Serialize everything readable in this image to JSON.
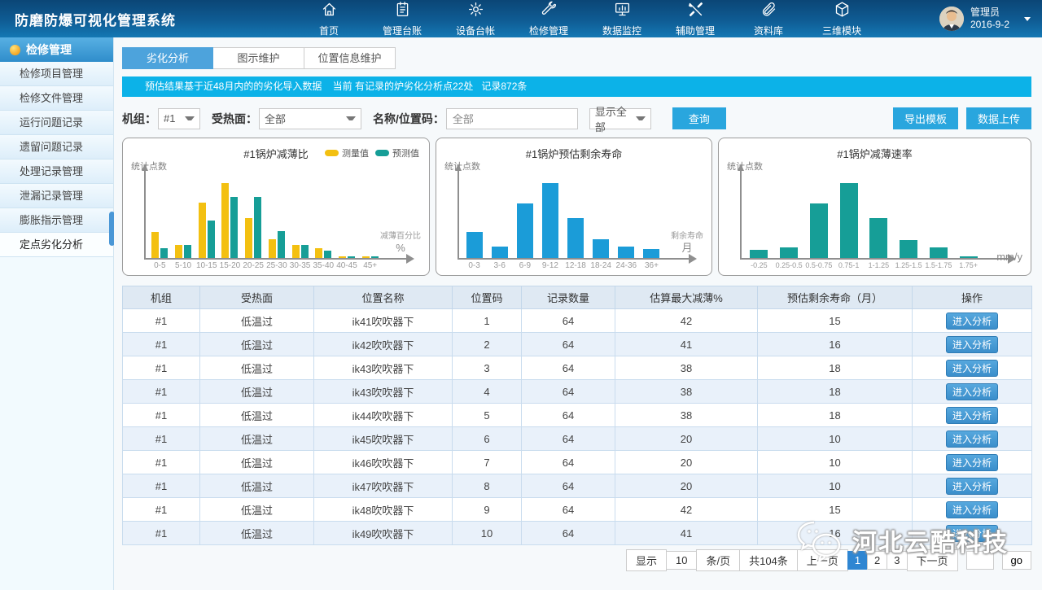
{
  "app": {
    "title": "防磨防爆可视化管理系统"
  },
  "topnav": {
    "items": [
      {
        "label": "首页",
        "icon": "home-icon"
      },
      {
        "label": "管理台账",
        "icon": "ledger-icon"
      },
      {
        "label": "设备台帐",
        "icon": "gear-icon"
      },
      {
        "label": "检修管理",
        "icon": "wrench-icon"
      },
      {
        "label": "数据监控",
        "icon": "monitor-icon"
      },
      {
        "label": "辅助管理",
        "icon": "tools-icon"
      },
      {
        "label": "资料库",
        "icon": "paperclip-icon"
      },
      {
        "label": "三维模块",
        "icon": "cube-icon"
      }
    ],
    "user": {
      "name": "管理员",
      "date": "2016-9-2"
    }
  },
  "sidebar": {
    "header": "检修管理",
    "items": [
      "检修项目管理",
      "检修文件管理",
      "运行问题记录",
      "遗留问题记录",
      "处理记录管理",
      "泄漏记录管理",
      "膨胀指示管理",
      "定点劣化分析"
    ],
    "active_index": 7
  },
  "tabs": [
    {
      "label": "劣化分析",
      "active": true
    },
    {
      "label": "图示维护",
      "active": false
    },
    {
      "label": "位置信息维护",
      "active": false
    }
  ],
  "banner": "预估结果基于近48月内的的劣化导入数据    当前 有记录的炉劣化分析点22处   记录872条",
  "filters": {
    "unit_label": "机组：",
    "unit_value": "#1",
    "surface_label": "受热面：",
    "surface_value": "全部",
    "name_label": "名称/位置码：",
    "name_value": "全部",
    "display_value": "显示全部",
    "query_button": "查询",
    "export_button": "导出模板",
    "upload_button": "数据上传"
  },
  "chart_data": [
    {
      "type": "bar",
      "title": "#1锅炉减薄比",
      "ylabel": "统计点数",
      "xlabel_lines": [
        "减薄百分比",
        "%"
      ],
      "categories": [
        "0-5",
        "5-10",
        "10-15",
        "15-20",
        "20-25",
        "25-30",
        "30-35",
        "35-40",
        "40-45",
        "45+"
      ],
      "series": [
        {
          "name": "测量值",
          "color": "#f3c011",
          "values": [
            32,
            16,
            68,
            92,
            49,
            23,
            16,
            12,
            1,
            1
          ]
        },
        {
          "name": "预测值",
          "color": "#169e97",
          "values": [
            12,
            16,
            46,
            75,
            75,
            33,
            16,
            9,
            1,
            1
          ]
        }
      ],
      "legend": true,
      "ylim": [
        0,
        100
      ],
      "grid": false
    },
    {
      "type": "bar",
      "title": "#1锅炉预估剩余寿命",
      "ylabel": "统计点数",
      "xlabel_lines": [
        "剩余寿命",
        "月"
      ],
      "categories": [
        "0-3",
        "3-6",
        "6-9",
        "9-12",
        "12-18",
        "18-24",
        "24-36",
        "36+"
      ],
      "series": [
        {
          "name": "统计点数",
          "color": "#1b9cd8",
          "values": [
            32,
            14,
            67,
            92,
            49,
            23,
            14,
            11
          ]
        }
      ],
      "legend": false,
      "ylim": [
        0,
        100
      ],
      "grid": false
    },
    {
      "type": "bar",
      "title": "#1锅炉减薄速率",
      "ylabel": "统计点数",
      "xlabel_lines": [
        "mm/y"
      ],
      "categories": [
        "-0.25",
        "0.25-0.5",
        "0.5-0.75",
        "0.75-1",
        "1-1.25",
        "1.25-1.5",
        "1.5-1.75",
        "1.75+"
      ],
      "series": [
        {
          "name": "统计点数",
          "color": "#169e97",
          "values": [
            10,
            13,
            66,
            90,
            48,
            22,
            13,
            2
          ]
        }
      ],
      "legend": false,
      "ylim": [
        0,
        100
      ],
      "grid": false
    }
  ],
  "table": {
    "headers": [
      "机组",
      "受热面",
      "位置名称",
      "位置码",
      "记录数量",
      "估算最大减薄%",
      "预估剩余寿命（月）",
      "操作"
    ],
    "action_label": "进入分析",
    "rows": [
      {
        "unit": "#1",
        "surface": "低温过",
        "name": "ik41吹吹器下",
        "code": "1",
        "count": "64",
        "thinning": "42",
        "hl": true,
        "life": "15"
      },
      {
        "unit": "#1",
        "surface": "低温过",
        "name": "ik42吹吹器下",
        "code": "2",
        "count": "64",
        "thinning": "41",
        "hl": true,
        "life": "16"
      },
      {
        "unit": "#1",
        "surface": "低温过",
        "name": "ik43吹吹器下",
        "code": "3",
        "count": "64",
        "thinning": "38",
        "hl": true,
        "life": "18"
      },
      {
        "unit": "#1",
        "surface": "低温过",
        "name": "ik43吹吹器下",
        "code": "4",
        "count": "64",
        "thinning": "38",
        "hl": true,
        "life": "18"
      },
      {
        "unit": "#1",
        "surface": "低温过",
        "name": "ik44吹吹器下",
        "code": "5",
        "count": "64",
        "thinning": "38",
        "hl": true,
        "life": "18"
      },
      {
        "unit": "#1",
        "surface": "低温过",
        "name": "ik45吹吹器下",
        "code": "6",
        "count": "64",
        "thinning": "20",
        "hl": false,
        "life": "10"
      },
      {
        "unit": "#1",
        "surface": "低温过",
        "name": "ik46吹吹器下",
        "code": "7",
        "count": "64",
        "thinning": "20",
        "hl": false,
        "life": "10"
      },
      {
        "unit": "#1",
        "surface": "低温过",
        "name": "ik47吹吹器下",
        "code": "8",
        "count": "64",
        "thinning": "20",
        "hl": false,
        "life": "10"
      },
      {
        "unit": "#1",
        "surface": "低温过",
        "name": "ik48吹吹器下",
        "code": "9",
        "count": "64",
        "thinning": "42",
        "hl": true,
        "life": "15"
      },
      {
        "unit": "#1",
        "surface": "低温过",
        "name": "ik49吹吹器下",
        "code": "10",
        "count": "64",
        "thinning": "41",
        "hl": true,
        "life": "16"
      }
    ]
  },
  "pagination": {
    "show_label": "显示",
    "page_size": "10",
    "per_page_label": "条/页",
    "total_label": "共104条",
    "prev_label": "上一页",
    "pages": [
      "1",
      "2",
      "3"
    ],
    "active_page": "1",
    "next_label": "下一页",
    "goto_value": "",
    "go_label": "go"
  },
  "watermark": {
    "text": "河北云酷科技"
  },
  "colors": {
    "accent": "#29a6de",
    "banner": "#0cb2e8",
    "tab_active": "#4da3dc",
    "orange_value": "#f8731d",
    "bar_yellow": "#f3c011",
    "bar_teal": "#169e97",
    "bar_blue": "#1b9cd8",
    "active_page_bg": "#2f86d2"
  }
}
